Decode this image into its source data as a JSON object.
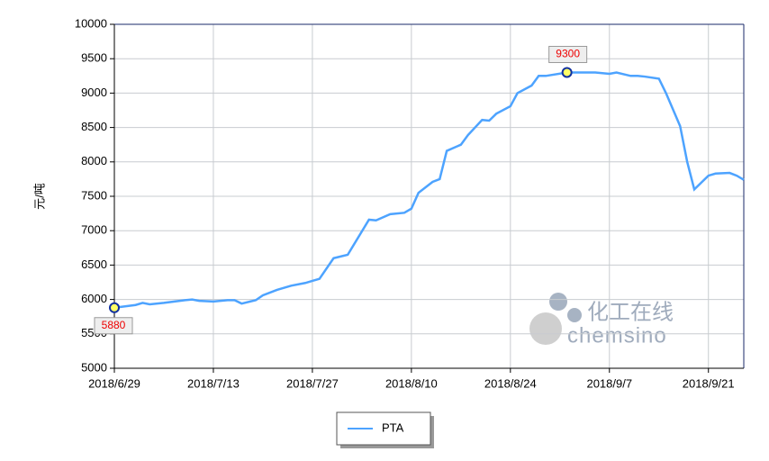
{
  "chart_data": {
    "type": "line",
    "y_label": "元/吨",
    "x": [
      "2018/6/29",
      "2018/7/2",
      "2018/7/3",
      "2018/7/4",
      "2018/7/6",
      "2018/7/9",
      "2018/7/10",
      "2018/7/11",
      "2018/7/13",
      "2018/7/15",
      "2018/7/16",
      "2018/7/17",
      "2018/7/19",
      "2018/7/20",
      "2018/7/22",
      "2018/7/24",
      "2018/7/26",
      "2018/7/27",
      "2018/7/28",
      "2018/7/30",
      "2018/8/1",
      "2018/8/4",
      "2018/8/5",
      "2018/8/7",
      "2018/8/9",
      "2018/8/10",
      "2018/8/11",
      "2018/8/13",
      "2018/8/14",
      "2018/8/15",
      "2018/8/17",
      "2018/8/18",
      "2018/8/20",
      "2018/8/21",
      "2018/8/22",
      "2018/8/24",
      "2018/8/25",
      "2018/8/27",
      "2018/8/28",
      "2018/8/29",
      "2018/9/1",
      "2018/9/3",
      "2018/9/4",
      "2018/9/5",
      "2018/9/7",
      "2018/9/8",
      "2018/9/10",
      "2018/9/11",
      "2018/9/12",
      "2018/9/14",
      "2018/9/15",
      "2018/9/17",
      "2018/9/18",
      "2018/9/19",
      "2018/9/21",
      "2018/9/22",
      "2018/9/24",
      "2018/9/25",
      "2018/9/26"
    ],
    "series": [
      {
        "name": "PTA",
        "color": "#4da3ff",
        "values": [
          5880,
          5920,
          5950,
          5930,
          5950,
          5990,
          6000,
          5980,
          5970,
          5990,
          5990,
          5940,
          5990,
          6060,
          6140,
          6200,
          6240,
          6270,
          6300,
          6600,
          6650,
          7160,
          7150,
          7240,
          7260,
          7320,
          7550,
          7710,
          7750,
          8160,
          8250,
          8390,
          8610,
          8600,
          8700,
          8810,
          9000,
          9110,
          9250,
          9250,
          9300,
          9300,
          9300,
          9300,
          9280,
          9300,
          9250,
          9250,
          9240,
          9210,
          9000,
          8520,
          8000,
          7600,
          7800,
          7830,
          7840,
          7800,
          7740
        ]
      }
    ],
    "annotations": [
      {
        "x": "2018/6/29",
        "value": 5880,
        "label": "5880"
      },
      {
        "x": "2018/9/1",
        "value": 9300,
        "label": "9300"
      }
    ],
    "xlim": [
      "2018/6/29",
      "2018/9/26"
    ],
    "xticks": [
      "2018/6/29",
      "2018/7/13",
      "2018/7/27",
      "2018/8/10",
      "2018/8/24",
      "2018/9/7",
      "2018/9/21"
    ],
    "ylim": [
      5000,
      10000
    ],
    "yticks": [
      5000,
      5500,
      6000,
      6500,
      7000,
      7500,
      8000,
      8500,
      9000,
      9500,
      10000
    ],
    "grid": true,
    "watermark": [
      "化工在线",
      "chemsino"
    ]
  }
}
